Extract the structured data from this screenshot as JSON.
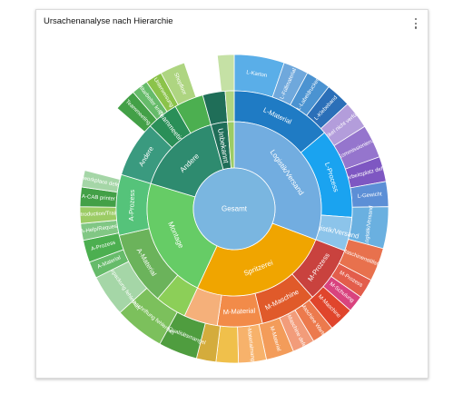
{
  "card": {
    "title": "Ursachenanalyse nach Hierarchie",
    "menu_icon": "more-vertical-icon"
  },
  "chart_data": {
    "type": "sunburst",
    "title": "Ursachenanalyse nach Hierarchie",
    "root": {
      "name": "Gesamt",
      "color": "#7ab6e0"
    },
    "ring1": [
      {
        "name": "Logistik/Versand",
        "value": 100,
        "color": "#72ade0"
      },
      {
        "name": "Spritzerei",
        "value": 85,
        "color": "#f0a500"
      },
      {
        "name": "Montage",
        "value": 74,
        "color": "#66cc66"
      },
      {
        "name": "Andere",
        "value": 52,
        "color": "#2e8b6f"
      },
      {
        "name": "Unbekannt",
        "value": 10,
        "color": "#1f6e58"
      },
      {
        "name": "",
        "value": 4,
        "color": "#9ccc65"
      }
    ],
    "ring2": [
      {
        "name": "L-Material",
        "value": 45,
        "color": "#1f7bc4"
      },
      {
        "name": "L-Process",
        "value": 40,
        "color": "#1aa3f0"
      },
      {
        "name": "Logistik/Versand",
        "value": 15,
        "color": "#8cc4ea"
      },
      {
        "name": "M-Prozess",
        "value": 25,
        "color": "#c9423e"
      },
      {
        "name": "M-Maschine",
        "value": 25,
        "color": "#e05a2a"
      },
      {
        "name": "M-Material",
        "value": 20,
        "color": "#f28b49"
      },
      {
        "name": "",
        "value": 15,
        "color": "#f5b07a"
      },
      {
        "name": "",
        "value": 14,
        "color": "#8ccf58"
      },
      {
        "name": "A-Material",
        "value": 33,
        "color": "#6bb35b"
      },
      {
        "name": "A-Prozess",
        "value": 27,
        "color": "#55c37a"
      },
      {
        "name": "Andere",
        "value": 25,
        "color": "#3a9a7f"
      },
      {
        "name": "Teammeeting",
        "value": 14,
        "color": "#2a8f58"
      },
      {
        "name": "",
        "value": 13,
        "color": "#4caf50"
      },
      {
        "name": "",
        "value": 10,
        "color": "#1f6e58"
      },
      {
        "name": "",
        "value": 4,
        "color": "#aed581"
      }
    ],
    "ring3": [
      {
        "name": "L-Karton",
        "value": 18,
        "color": "#5aaee8"
      },
      {
        "name": "L-Füllmaterial",
        "value": 9,
        "color": "#6fa8dc"
      },
      {
        "name": "L-Labeldrucker",
        "value": 9,
        "color": "#4b93d1"
      },
      {
        "name": "L-Klebeband",
        "value": 9,
        "color": "#2b6fb8"
      },
      {
        "name": "L-Artikel nicht verfügbar",
        "value": 10,
        "color": "#b39ddb"
      },
      {
        "name": "L-Kommissionierung",
        "value": 12,
        "color": "#9575cd"
      },
      {
        "name": "L-Arbeitsplatz defekt",
        "value": 9,
        "color": "#7e57c2"
      },
      {
        "name": "L-Gewicht",
        "value": 9,
        "color": "#5c8fd6"
      },
      {
        "name": "Logistik/Versand",
        "value": 15,
        "color": "#6ab0e0"
      },
      {
        "name": "M-Maschinenstillstand",
        "value": 12,
        "color": "#e8714d"
      },
      {
        "name": "M-Prozess",
        "value": 7,
        "color": "#e35d4b"
      },
      {
        "name": "M-Schulung",
        "value": 6,
        "color": "#d9437e"
      },
      {
        "name": "M-Maschine",
        "value": 9,
        "color": "#e0452c"
      },
      {
        "name": "M-Maschine Wartung",
        "value": 8,
        "color": "#ec7a4d"
      },
      {
        "name": "M-Maschine defekt",
        "value": 8,
        "color": "#f29c7a"
      },
      {
        "name": "M-Material",
        "value": 10,
        "color": "#f39c5a"
      },
      {
        "name": "M-Materialmangel",
        "value": 10,
        "color": "#f7b26b"
      },
      {
        "name": "",
        "value": 8,
        "color": "#f0c04b"
      },
      {
        "name": "",
        "value": 7,
        "color": "#d4ac3c"
      },
      {
        "name": "A-Qualitätsmangel",
        "value": 14,
        "color": "#4f9d3f"
      },
      {
        "name": "A-Beschriftung fehlerhaft",
        "value": 18,
        "color": "#7cc05c"
      },
      {
        "name": "A-Verpackung fehlerhaft",
        "value": 15,
        "color": "#a5d6a7"
      },
      {
        "name": "A-Material",
        "value": 6,
        "color": "#66bb6a"
      },
      {
        "name": "A-Prozess",
        "value": 8,
        "color": "#4caf50"
      },
      {
        "name": "A-Help/Request",
        "value": 6,
        "color": "#81c784"
      },
      {
        "name": "A-Introduction/Training",
        "value": 6,
        "color": "#9ccc65"
      },
      {
        "name": "A-CAB printer",
        "value": 7,
        "color": "#43a047"
      },
      {
        "name": "A-workplace defect",
        "value": 6,
        "color": "#a5d6a7"
      },
      {
        "name": "",
        "value": 25,
        "color": "#ffffff"
      },
      {
        "name": "Teammeeting",
        "value": 8,
        "color": "#43a047"
      },
      {
        "name": "Mitarbeiter krank",
        "value": 6,
        "color": "#66bb6a"
      },
      {
        "name": "Unterweisung",
        "value": 6,
        "color": "#8bc34a"
      },
      {
        "name": "Shopfloor",
        "value": 9,
        "color": "#aed581"
      },
      {
        "name": "",
        "value": 12,
        "color": "#ffffff"
      },
      {
        "name": "",
        "value": 6,
        "color": "#c5e1a5"
      }
    ]
  }
}
